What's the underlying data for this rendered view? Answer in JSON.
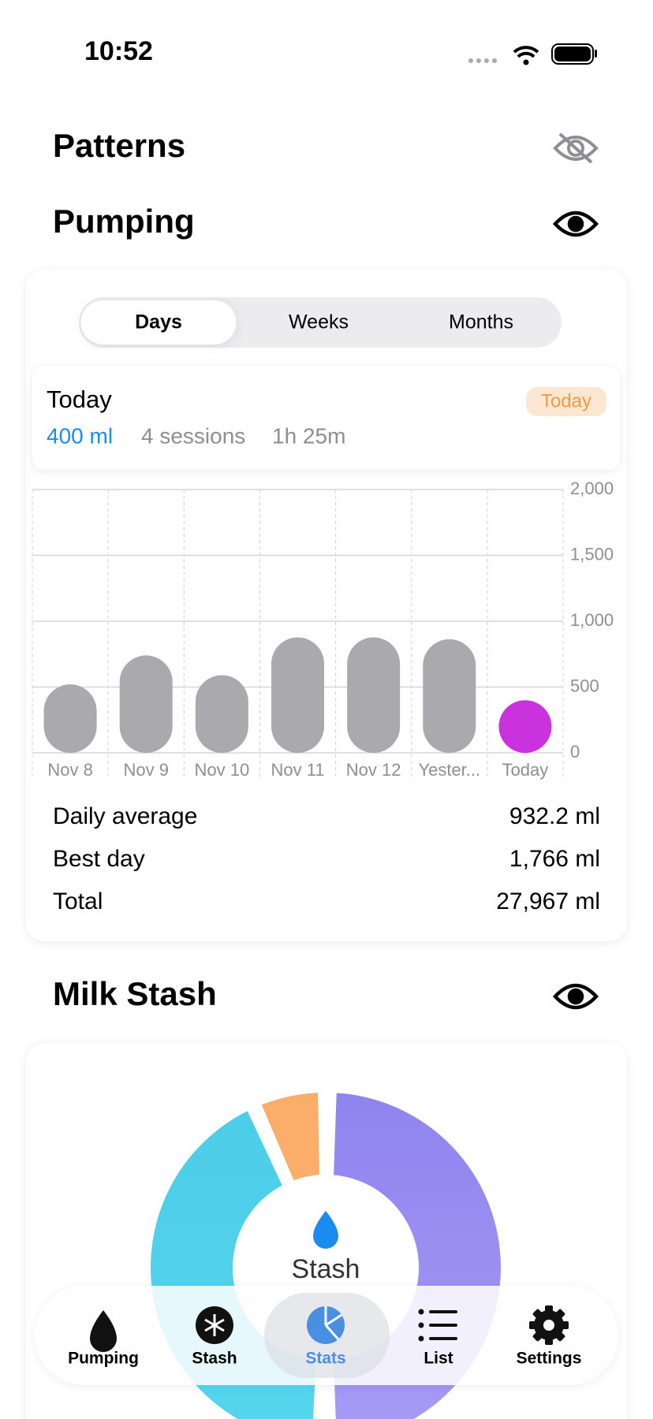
{
  "status_bar": {
    "time": "10:52"
  },
  "patterns": {
    "title": "Patterns"
  },
  "pumping": {
    "title": "Pumping",
    "segments": [
      "Days",
      "Weeks",
      "Months"
    ],
    "selected_segment": 0,
    "summary": {
      "title": "Today",
      "badge": "Today",
      "volume": "400 ml",
      "sessions": "4 sessions",
      "duration": "1h 25m"
    },
    "chart": {
      "type": "bar",
      "categories": [
        "Nov 8",
        "Nov 9",
        "Nov 10",
        "Nov 11",
        "Nov 12",
        "Yester...",
        "Today"
      ],
      "values": [
        520,
        740,
        590,
        877,
        877,
        863,
        400
      ],
      "colors": [
        "#aaaaae",
        "#aaaaae",
        "#aaaaae",
        "#aaaaae",
        "#aaaaae",
        "#aaaaae",
        "#c932dc"
      ],
      "ylim": [
        0,
        2000
      ],
      "yticks": [
        0,
        500,
        {
          "value": 1000,
          "label": "1,000"
        },
        {
          "value": 1500,
          "label": "1,500"
        },
        {
          "value": 2000,
          "label": "2,000"
        }
      ],
      "grid": true
    },
    "stats": [
      {
        "label": "Daily average",
        "value": "932.2 ml"
      },
      {
        "label": "Best day",
        "value": "1,766 ml"
      },
      {
        "label": "Total",
        "value": "27,967 ml"
      }
    ]
  },
  "milk_stash": {
    "title": "Milk Stash",
    "center_label": "Stash"
  },
  "tab_bar": {
    "items": [
      "Pumping",
      "Stash",
      "Stats",
      "List",
      "Settings"
    ],
    "selected": 2
  }
}
